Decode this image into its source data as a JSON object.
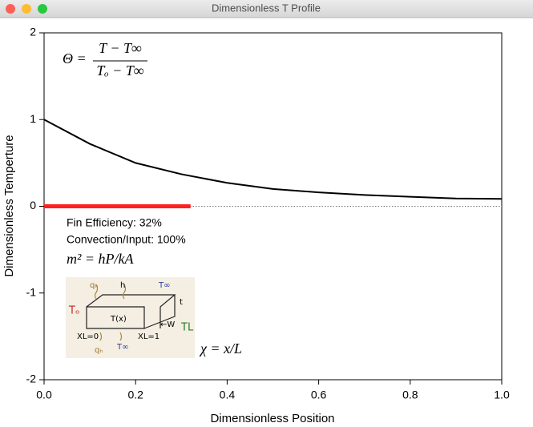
{
  "window_title": "Dimensionless T Profile",
  "chart_data": {
    "type": "line",
    "xlabel": "Dimensionless Position",
    "ylabel": "Dimensionless Temperture",
    "series": [
      {
        "color": "#000000",
        "x": [
          0,
          0.1,
          0.2,
          0.3,
          0.4,
          0.5,
          0.6,
          0.7,
          0.8,
          0.9,
          1.0
        ],
        "values": [
          1,
          0.72,
          0.5,
          0.37,
          0.27,
          0.2,
          0.16,
          0.13,
          0.11,
          0.09,
          0.085
        ]
      },
      {
        "color": "#ff2020",
        "x": [
          0,
          0.32
        ],
        "values": [
          0,
          0
        ]
      }
    ],
    "xlim": [
      0,
      1
    ],
    "ylim": [
      -2,
      2
    ],
    "xticks": [
      {
        "value": 0,
        "label": "0.0"
      },
      0.2,
      0.4,
      0.6,
      0.8,
      {
        "value": 1,
        "label": "1.0"
      }
    ],
    "yticks": [
      -2,
      -1,
      0,
      1,
      2
    ],
    "annotations": {
      "theta_lhs": "Θ =",
      "theta_num": "T − T∞",
      "theta_den": "Tₒ − T∞",
      "efficiency": "Fin Efficiency: 32%",
      "convection": "Convection/Input: 100%",
      "m_eq": "m² = hP/kA",
      "chi_eq": "χ = x/L"
    },
    "sketch_labels": {
      "q_top": "qₕ",
      "h": "h",
      "t_inf_top": "T∞",
      "t_o": "Tₒ",
      "t_x": "T(x)",
      "x0": "XL=0",
      "x1": "XL=1",
      "w": "←W",
      "t": "t",
      "t_l": "TL",
      "q_bot": "qₕ",
      "t_inf_bot": "T∞"
    }
  }
}
